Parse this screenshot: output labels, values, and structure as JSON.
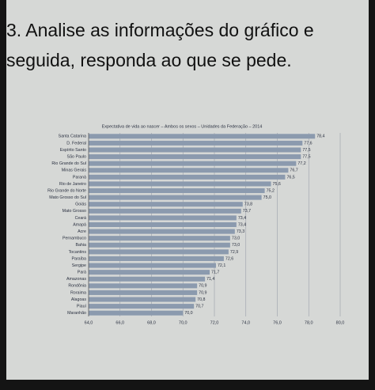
{
  "header": {
    "line1": "3. Analise as informações do gráfico e",
    "line2": "seguida, responda ao que se pede."
  },
  "chart_data": {
    "type": "bar",
    "orientation": "horizontal",
    "title": "Expectativa de vida ao nascer – Ambos os sexos – Unidades da Federação – 2014",
    "categories": [
      "Santa Catarina",
      "D. Federal",
      "Espírito Santo",
      "São Paulo",
      "Rio Grande do Sul",
      "Minas Gerais",
      "Paraná",
      "Rio de Janeiro",
      "Rio Grande do Norte",
      "Mato Grosso do Sul",
      "Goiás",
      "Mato Grosso",
      "Ceará",
      "Amapá",
      "Acre",
      "Pernambuco",
      "Bahia",
      "Tocantins",
      "Paraíba",
      "Sergipe",
      "Pará",
      "Amazonas",
      "Rondônia",
      "Roraima",
      "Alagoas",
      "Piauí",
      "Maranhão"
    ],
    "values": [
      78.4,
      77.6,
      77.5,
      77.5,
      77.2,
      76.7,
      76.5,
      75.6,
      75.2,
      75.0,
      73.8,
      73.7,
      73.4,
      73.4,
      73.3,
      73.0,
      73.0,
      72.9,
      72.6,
      72.1,
      71.7,
      71.4,
      70.9,
      70.9,
      70.8,
      70.7,
      70.0
    ],
    "value_labels": [
      "78,4",
      "77,6",
      "77,5",
      "77,5",
      "77,2",
      "76,7",
      "76,5",
      "75,6",
      "75,2",
      "75,0",
      "73,8",
      "73,7",
      "73,4",
      "73,4",
      "73,3",
      "73,0",
      "73,0",
      "72,9",
      "72,6",
      "72,1",
      "71,7",
      "71,4",
      "70,9",
      "70,9",
      "70,8",
      "70,7",
      "70,0"
    ],
    "color": "#8b9aae",
    "xlim": [
      64,
      80
    ],
    "xticks": [
      {
        "value": 64,
        "label": "64,0"
      },
      {
        "value": 66,
        "label": "66,0"
      },
      {
        "value": 68,
        "label": "68,0"
      },
      {
        "value": 70,
        "label": "70,0"
      },
      {
        "value": 72,
        "label": "72,0"
      },
      {
        "value": 74,
        "label": "74,0"
      },
      {
        "value": 76,
        "label": "76,0"
      },
      {
        "value": 78,
        "label": "78,0"
      },
      {
        "value": 80,
        "label": "80,0"
      }
    ],
    "grid": true
  }
}
